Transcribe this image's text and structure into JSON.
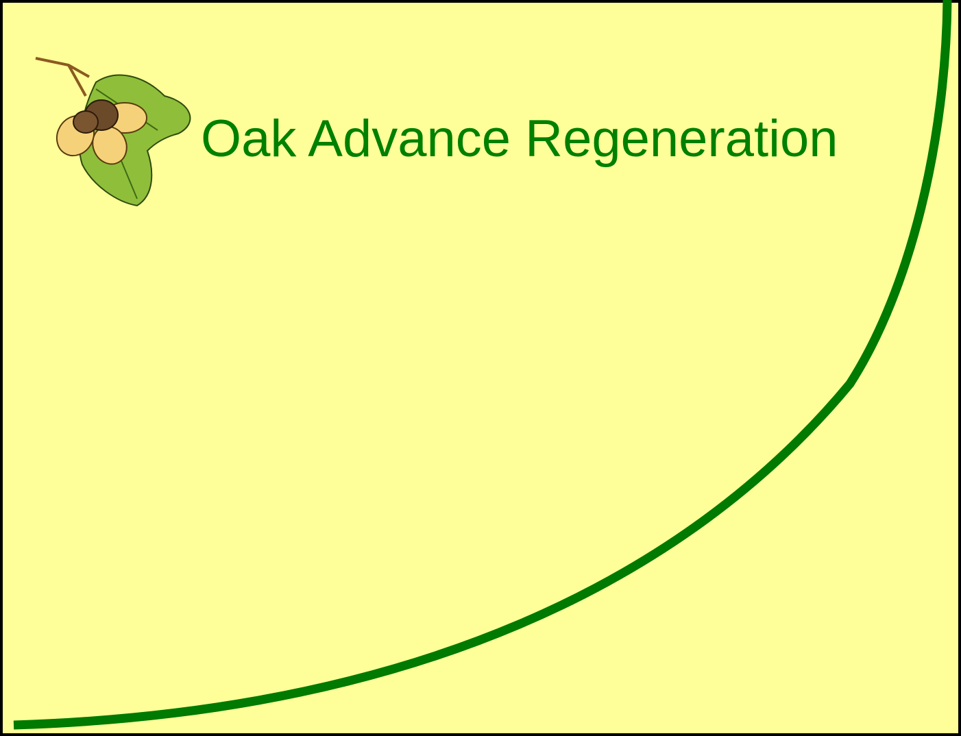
{
  "slide": {
    "title": "Oak Advance Regeneration"
  }
}
